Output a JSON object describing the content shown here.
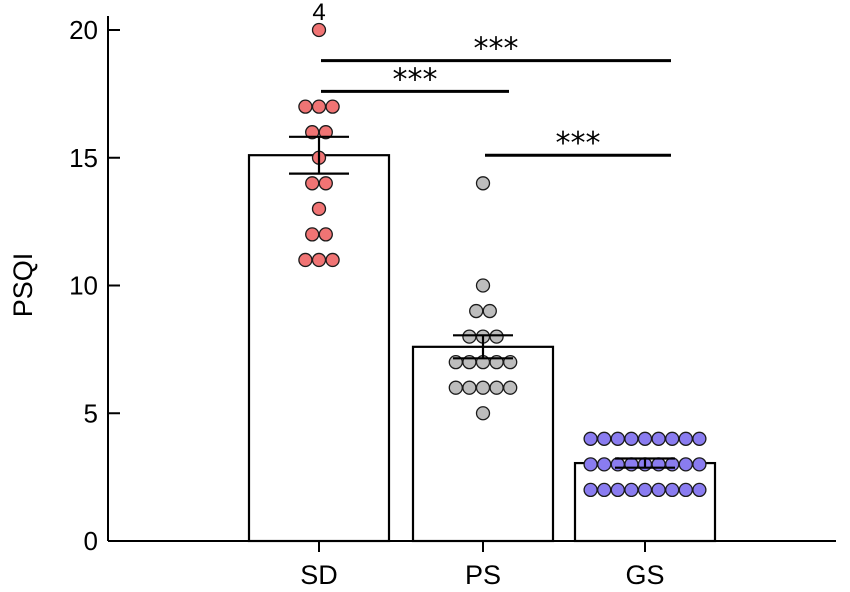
{
  "chart_data": {
    "type": "bar",
    "title": "",
    "xlabel": "",
    "ylabel": "PSQI",
    "ylim": [
      0,
      20
    ],
    "yticks": [
      0,
      5,
      10,
      15,
      20
    ],
    "categories": [
      "SD",
      "PS",
      "GS"
    ],
    "values": [
      15.1,
      7.6,
      3.05
    ],
    "sem": [
      0.72,
      0.45,
      0.18
    ],
    "point_colors": [
      "#f07474",
      "#bdbdbd",
      "#8a7cf0"
    ],
    "points": [
      [
        20,
        17,
        17,
        17,
        16,
        16,
        15,
        14,
        14,
        13,
        12,
        12,
        11,
        11,
        11
      ],
      [
        14,
        10,
        9,
        9,
        8,
        8,
        8,
        7,
        7,
        7,
        7,
        7,
        6,
        6,
        6,
        6,
        6,
        5
      ],
      [
        4,
        4,
        4,
        4,
        4,
        4,
        4,
        4,
        4,
        3,
        3,
        3,
        3,
        3,
        3,
        3,
        3,
        3,
        2,
        2,
        2,
        2,
        2,
        2,
        2,
        2,
        2
      ]
    ],
    "annotations": [
      {
        "category": "SD",
        "y": 20,
        "text": "4"
      }
    ],
    "significance": [
      {
        "from": "SD",
        "to": "GS",
        "y": 18.8,
        "text": "***"
      },
      {
        "from": "SD",
        "to": "PS",
        "y": 17.6,
        "text": "***"
      },
      {
        "from": "PS",
        "to": "GS",
        "y": 15.1,
        "text": "***"
      }
    ],
    "grid": false,
    "legend": "none"
  }
}
